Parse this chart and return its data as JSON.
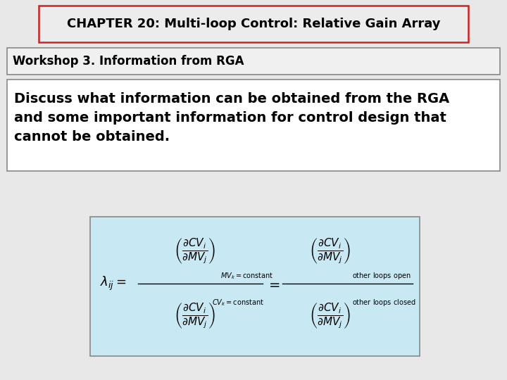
{
  "title": "CHAPTER 20: Multi-loop Control: Relative Gain Array",
  "subtitle": "Workshop 3. Information from RGA",
  "body_text": "Discuss what information can be obtained from the RGA\nand some important information for control design that\ncannot be obtained.",
  "title_bg": "#ececec",
  "title_border": "#cc2222",
  "subtitle_bg": "#f0f0f0",
  "subtitle_border": "#888888",
  "body_bg": "#ffffff",
  "body_border": "#888888",
  "formula_bg": "#c8e8f4",
  "formula_border": "#888888",
  "bg_color": "#e8e8e8",
  "title_fontsize": 13,
  "subtitle_fontsize": 12,
  "body_fontsize": 14,
  "formula_fontsize": 11
}
